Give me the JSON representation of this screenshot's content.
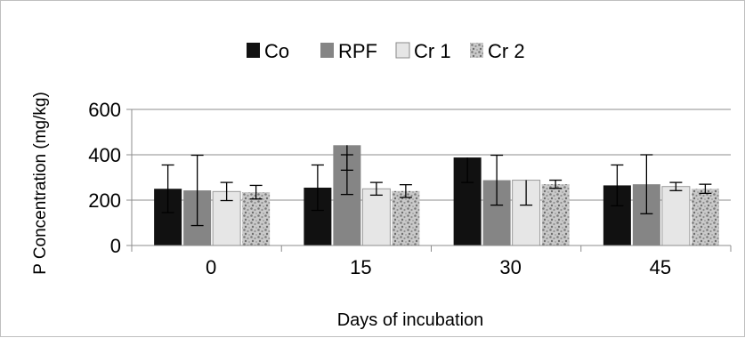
{
  "chart_data": {
    "type": "bar",
    "title": "",
    "xlabel": "Days of incubation",
    "ylabel": "P Concentration (mg/kg)",
    "categories": [
      "0",
      "15",
      "30",
      "45"
    ],
    "ylim": [
      0,
      600
    ],
    "yticks": [
      0,
      200,
      400,
      600
    ],
    "grid": true,
    "legend_position": "top",
    "series": [
      {
        "name": "Co",
        "color": "#111111",
        "pattern": "solid",
        "values": [
          250,
          255,
          388,
          265
        ],
        "errors": [
          105,
          100,
          0,
          90
        ]
      },
      {
        "name": "RPF",
        "color": "#858585",
        "pattern": "solid",
        "values": [
          243,
          442,
          288,
          270
        ],
        "errors": [
          155,
          0,
          110,
          130
        ]
      },
      {
        "name": "Cr 1",
        "color": "#e6e6e6",
        "pattern": "solid",
        "values": [
          238,
          250,
          288,
          260
        ],
        "errors": [
          40,
          28,
          0,
          18
        ]
      },
      {
        "name": "Cr 2",
        "color": "#bdbdbd",
        "pattern": "speckle",
        "values": [
          235,
          240,
          270,
          250
        ],
        "errors": [
          30,
          28,
          18,
          20
        ]
      }
    ],
    "lower_errors": {
      "Co": [
        null,
        null,
        388,
        null
      ],
      "RPF": [
        null,
        220,
        null,
        null
      ],
      "Cr 1": [
        null,
        null,
        250,
        null
      ]
    }
  }
}
